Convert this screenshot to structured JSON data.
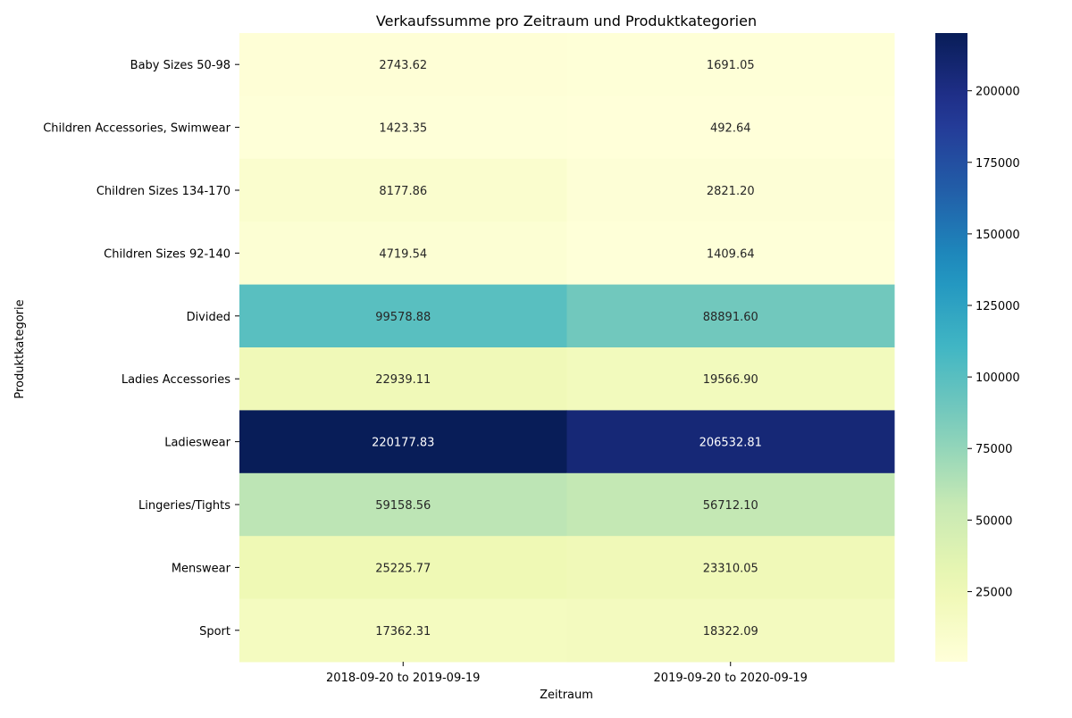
{
  "chart_data": {
    "type": "heatmap",
    "title": "Verkaufssumme pro Zeitraum und Produktkategorien",
    "xlabel": "Zeitraum",
    "ylabel": "Produktkategorie",
    "columns": [
      "2018-09-20 to 2019-09-19",
      "2019-09-20 to 2020-09-19"
    ],
    "rows": [
      "Baby Sizes 50-98",
      "Children Accessories, Swimwear",
      "Children Sizes 134-170",
      "Children Sizes 92-140",
      "Divided",
      "Ladies Accessories",
      "Ladieswear",
      "Lingeries/Tights",
      "Menswear",
      "Sport"
    ],
    "values": [
      [
        2743.62,
        1691.05
      ],
      [
        1423.35,
        492.64
      ],
      [
        8177.86,
        2821.2
      ],
      [
        4719.54,
        1409.64
      ],
      [
        99578.88,
        88891.6
      ],
      [
        22939.11,
        19566.9
      ],
      [
        220177.83,
        206532.81
      ],
      [
        59158.56,
        56712.1
      ],
      [
        25225.77,
        23310.05
      ],
      [
        17362.31,
        18322.09
      ]
    ],
    "value_format_decimals": 2,
    "colormap": "YlGnBu",
    "colorbar_ticks": [
      25000,
      50000,
      75000,
      100000,
      125000,
      150000,
      175000,
      200000
    ],
    "vmin": 492.64,
    "vmax": 220177.83
  }
}
